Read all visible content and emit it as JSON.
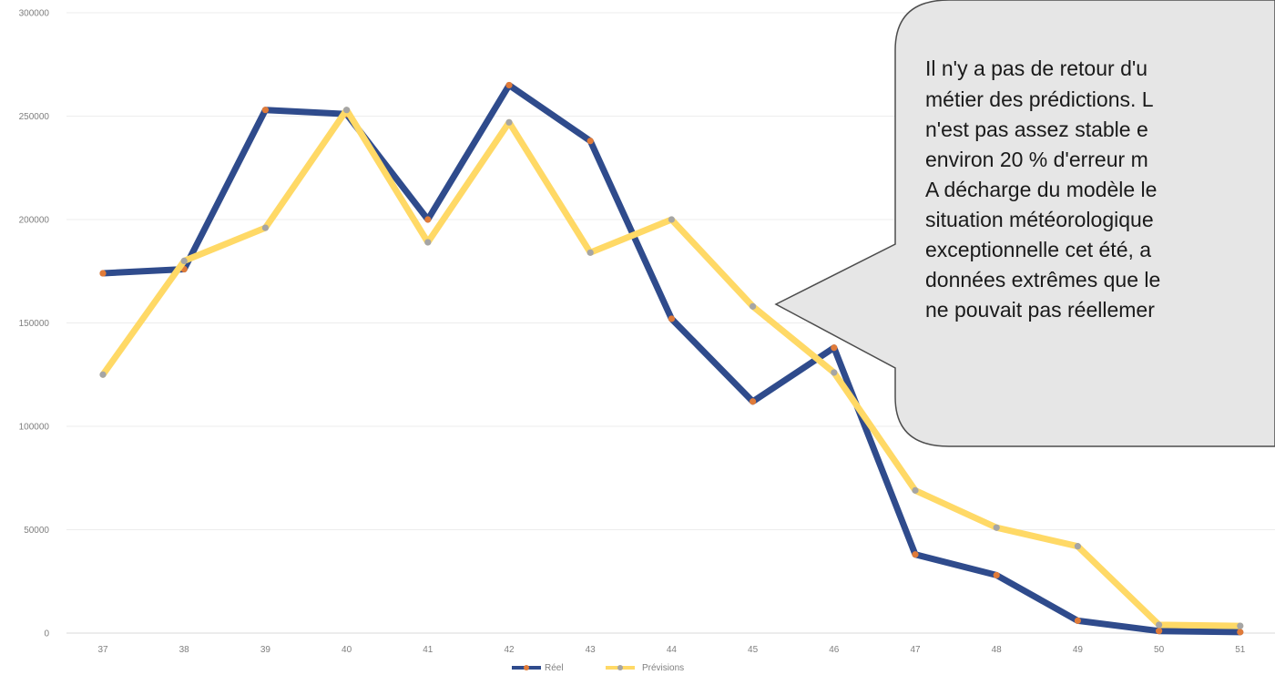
{
  "chart_data": {
    "type": "line",
    "title": "",
    "xlabel": "",
    "ylabel": "",
    "categories": [
      "37",
      "38",
      "39",
      "40",
      "41",
      "42",
      "43",
      "44",
      "45",
      "46",
      "47",
      "48",
      "49",
      "50",
      "51"
    ],
    "ylim": [
      0,
      300000
    ],
    "yticks": [
      0,
      50000,
      100000,
      150000,
      200000,
      250000,
      300000
    ],
    "ytick_labels": [
      "0",
      "50000",
      "100000",
      "150000",
      "200000",
      "250000",
      "300000"
    ],
    "grid": "horizontal",
    "legend_position": "bottom",
    "series": [
      {
        "name": "Réel",
        "color": "#2f4b8c",
        "marker_color": "#e07b39",
        "values": [
          174000,
          176000,
          253000,
          251000,
          200000,
          265000,
          238000,
          152000,
          112000,
          138000,
          38000,
          28000,
          6000,
          1000,
          500
        ]
      },
      {
        "name": "Prévisions",
        "color": "#ffd966",
        "marker_color": "#a5a5a5",
        "values": [
          125000,
          180000,
          196000,
          253000,
          189000,
          247000,
          184000,
          200000,
          158000,
          126000,
          69000,
          51000,
          42000,
          4000,
          3500
        ]
      }
    ]
  },
  "callout": {
    "lines": [
      "Il n'y a pas de retour d'u",
      "métier des prédictions. L",
      "n'est pas assez stable e",
      "environ 20 % d'erreur m",
      "A décharge du modèle le",
      "situation météorologique",
      "exceptionnelle cet été, a",
      "données extrêmes que le",
      "ne pouvait pas réellemer"
    ]
  }
}
